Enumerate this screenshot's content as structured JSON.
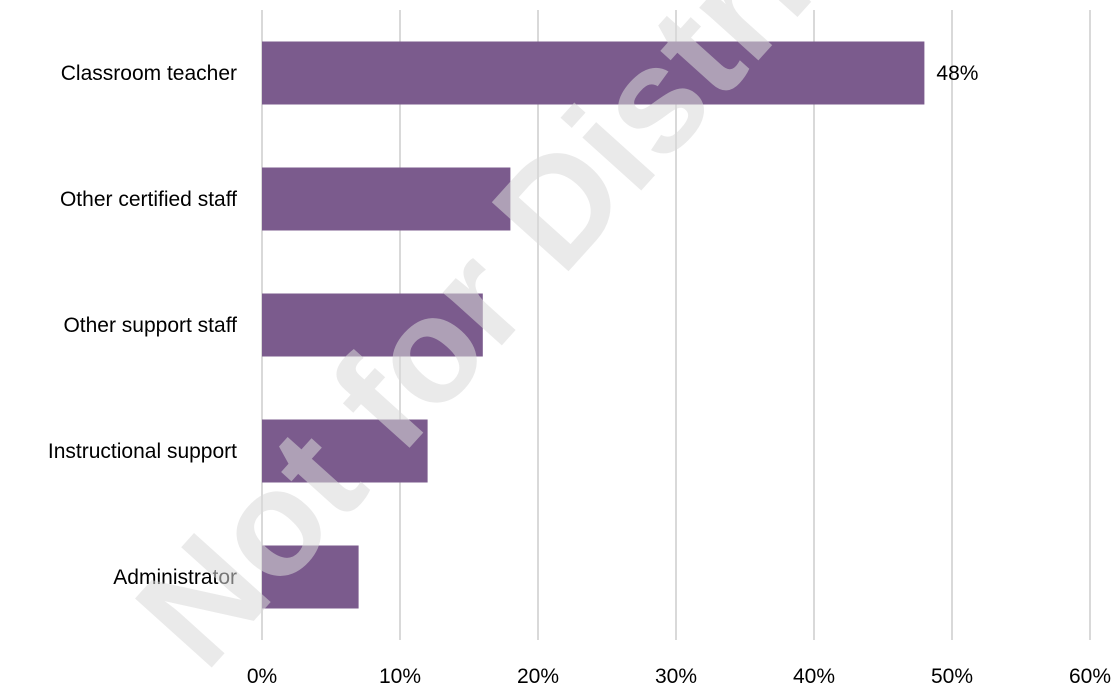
{
  "watermark": "Not for Distribution",
  "chart_data": {
    "type": "bar",
    "orientation": "horizontal",
    "categories": [
      "Classroom teacher",
      "Other certified staff",
      "Other support staff",
      "Instructional support",
      "Administrator"
    ],
    "values": [
      48,
      18,
      16,
      12,
      7
    ],
    "data_labels": [
      "48%",
      "",
      "",
      "",
      ""
    ],
    "title": "",
    "xlabel": "",
    "ylabel": "",
    "xlim": [
      0,
      60
    ],
    "ticks": [
      0,
      10,
      20,
      30,
      40,
      50,
      60
    ],
    "tick_labels": [
      "0%",
      "10%",
      "20%",
      "30%",
      "40%",
      "50%",
      "60%"
    ],
    "grid": "vertical",
    "legend": "none",
    "colors": {
      "bar": "#7b5b8d",
      "grid": "#d9d9d9"
    }
  }
}
